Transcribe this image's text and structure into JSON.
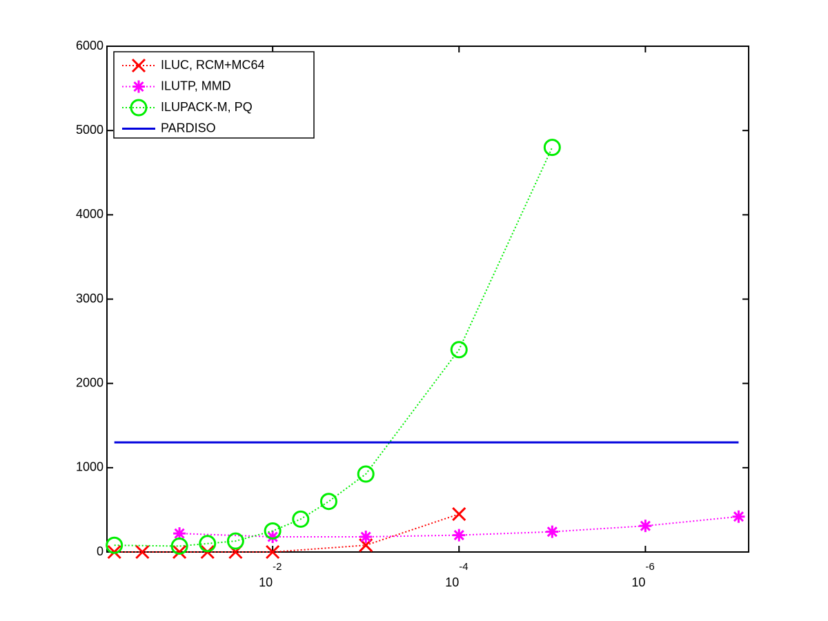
{
  "chart_data": {
    "type": "line",
    "xscale": "log",
    "legend": "upper left",
    "box": true,
    "xlim": [
      0.6,
      7.8e-08
    ],
    "ylim": [
      0,
      6000
    ],
    "xticks": [
      {
        "value": 0.01,
        "label": "10",
        "exponent": "-2"
      },
      {
        "value": 0.0001,
        "label": "10",
        "exponent": "-4"
      },
      {
        "value": 1e-06,
        "label": "10",
        "exponent": "-6"
      }
    ],
    "yticks": [
      0,
      1000,
      2000,
      3000,
      4000,
      5000,
      6000
    ],
    "series": [
      {
        "name": "ILUC, RCM+MC64",
        "color": "#ff0000",
        "marker": "x",
        "dash": "dotted",
        "x": [
          0.5,
          0.25,
          0.1,
          0.05,
          0.025,
          0.01,
          0.001,
          0.0001
        ],
        "values": [
          0,
          0,
          0,
          0,
          0,
          0,
          80,
          450
        ]
      },
      {
        "name": "ILUTP, MMD",
        "color": "#ff00ff",
        "marker": "star",
        "dash": "dotted",
        "x": [
          0.1,
          0.01,
          0.001,
          0.0001,
          1e-05,
          1e-06,
          1e-07
        ],
        "values": [
          220,
          180,
          180,
          200,
          240,
          310,
          420
        ]
      },
      {
        "name": "ILUPACK-M, PQ",
        "color": "#00ee00",
        "marker": "circle",
        "dash": "dotted",
        "x": [
          0.5,
          0.1,
          0.05,
          0.025,
          0.01,
          0.005,
          0.0025,
          0.001,
          0.0001,
          1e-05
        ],
        "values": [
          80,
          70,
          100,
          130,
          250,
          390,
          600,
          925,
          2400,
          4800
        ]
      },
      {
        "name": "PARDISO",
        "color": "#0000dd",
        "marker": "none",
        "dash": "solid",
        "x": [
          0.5,
          1e-07
        ],
        "values": [
          1300,
          1300
        ]
      }
    ]
  }
}
